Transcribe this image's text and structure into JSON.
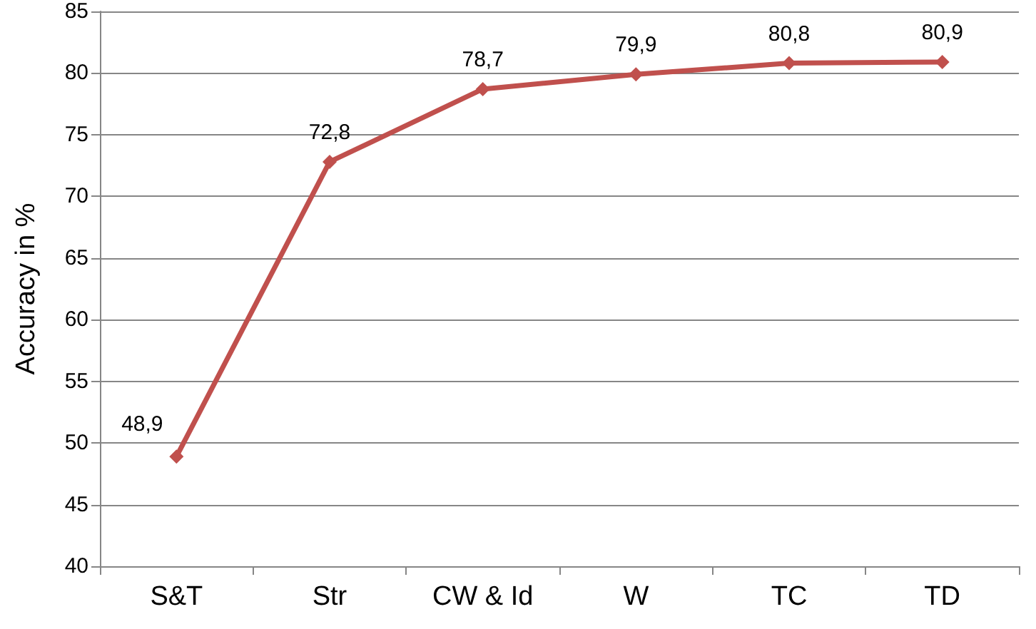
{
  "chart_data": {
    "type": "line",
    "ylabel": "Accuracy in %",
    "categories": [
      "S&T",
      "Str",
      "CW & Id",
      "W",
      "TC",
      "TD"
    ],
    "series": [
      {
        "color": "#c0504d",
        "values": [
          48.9,
          72.8,
          78.7,
          79.9,
          80.8,
          80.9
        ],
        "value_labels": [
          "48,9",
          "72,8",
          "78,7",
          "79,9",
          "80,8",
          "80,9"
        ]
      }
    ],
    "ylim": [
      40,
      85
    ],
    "yticks": [
      40,
      45,
      50,
      55,
      60,
      65,
      70,
      75,
      80,
      85
    ],
    "grid": "y",
    "marker": "diamond",
    "line_style": "solid"
  }
}
